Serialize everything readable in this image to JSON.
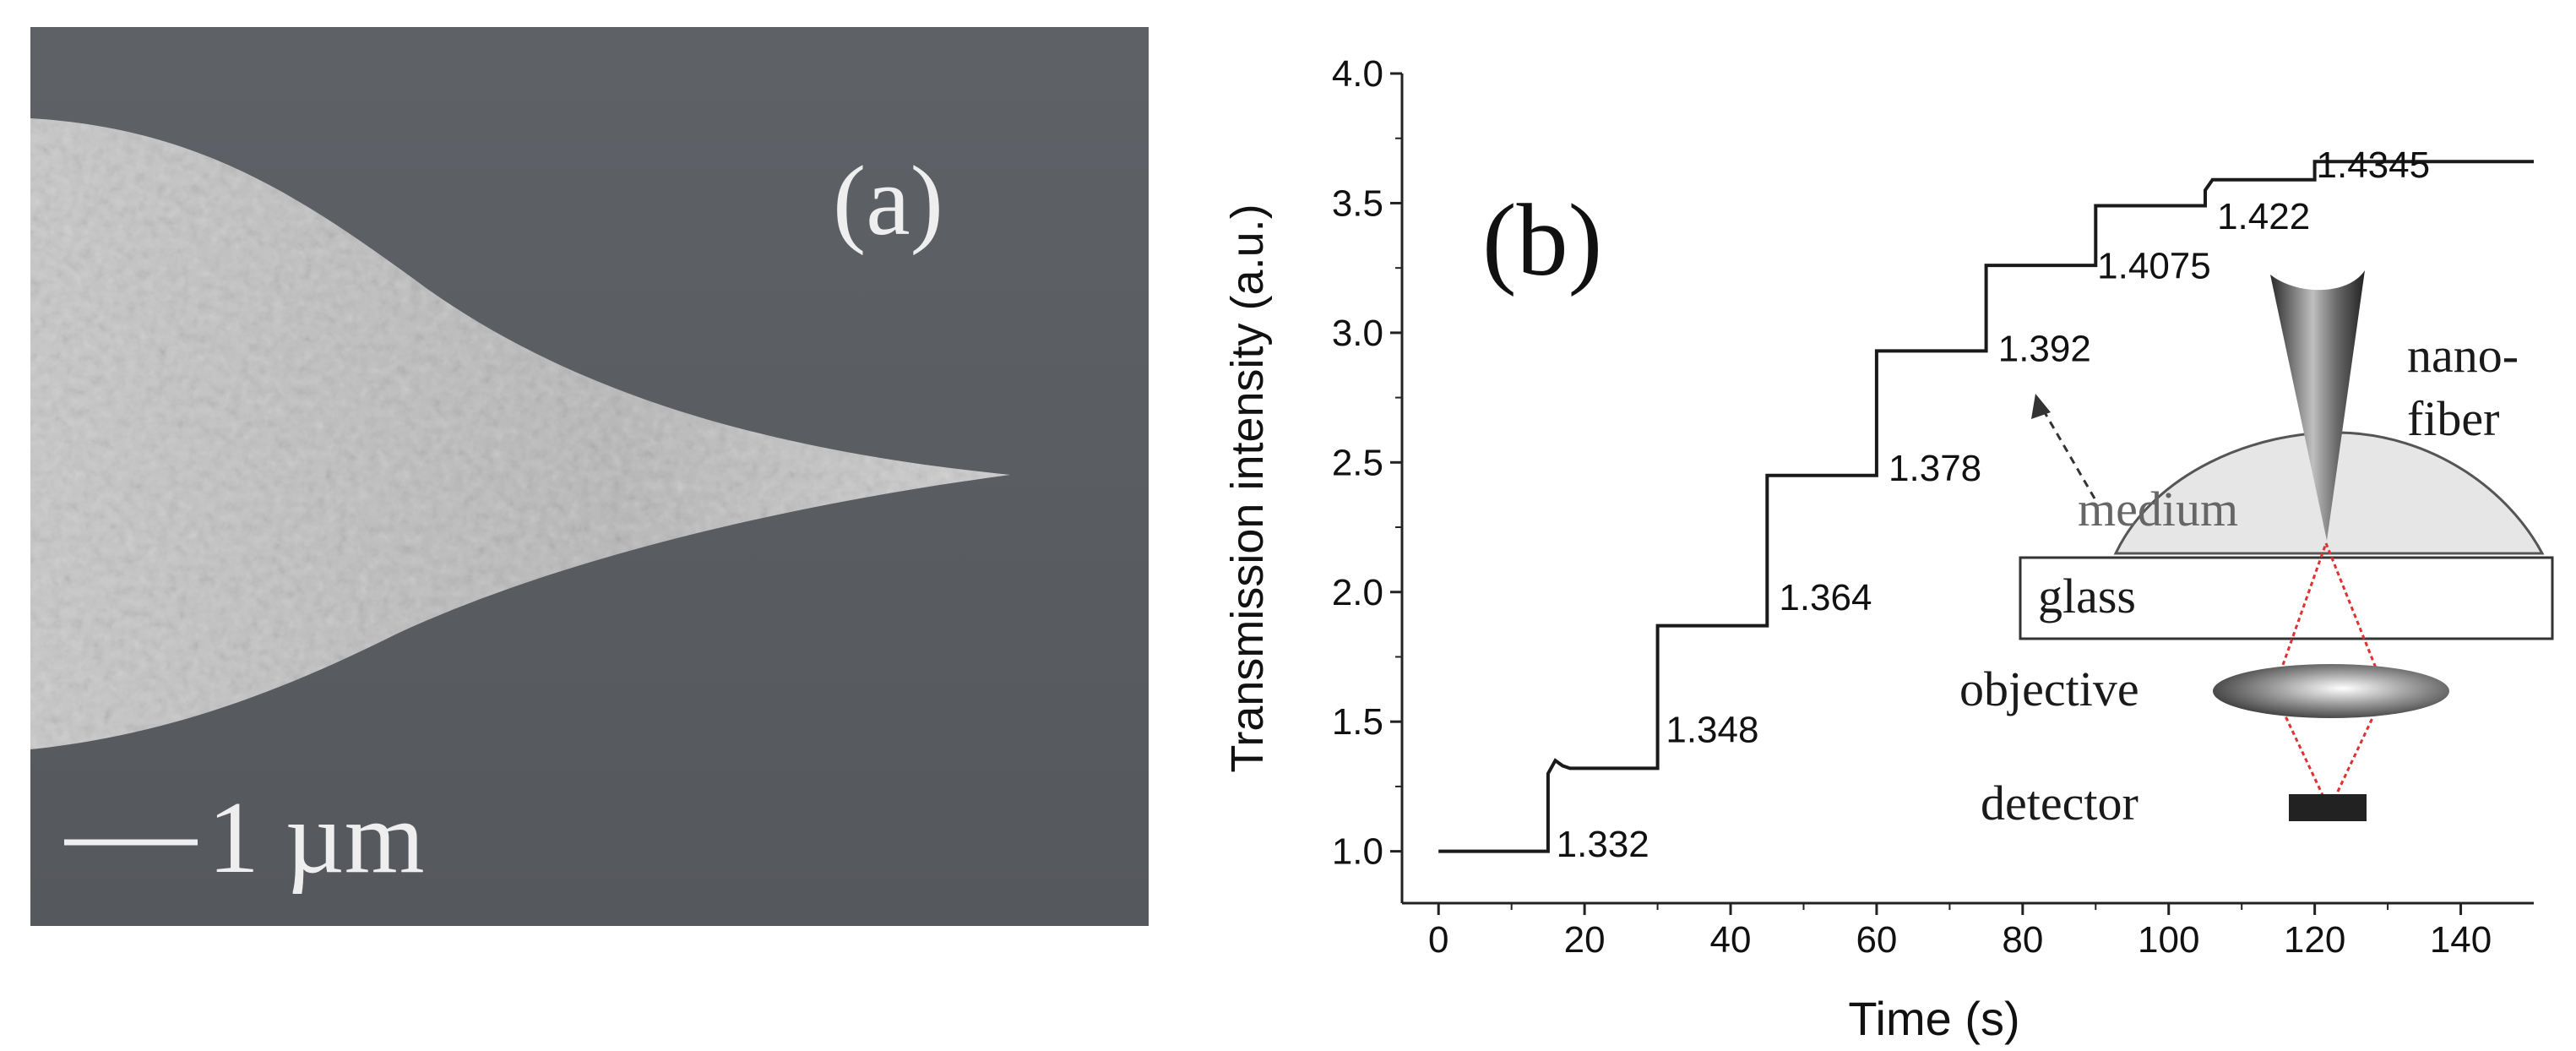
{
  "panel_a": {
    "label": "(a)",
    "scale_bar": "1 µm",
    "background": "#5b5f64",
    "tip_color": "#bcbcbc"
  },
  "panel_b": {
    "label": "(b)",
    "inset": {
      "fiber_label_1": "nano-",
      "fiber_label_2": "fiber",
      "medium_label": "medium",
      "glass_label": "glass",
      "objective_label": "objective",
      "detector_label": "detector",
      "beam_color": "#e03030"
    }
  },
  "chart_data": {
    "type": "line",
    "xlabel": "Time (s)",
    "ylabel": "Transmission intensity (a.u.)",
    "xlim": [
      -5,
      150
    ],
    "ylim": [
      0.8,
      4.0
    ],
    "xticks": [
      "0",
      "20",
      "40",
      "60",
      "80",
      "100",
      "120",
      "140"
    ],
    "yticks": [
      "1.0",
      "1.5",
      "2.0",
      "2.5",
      "3.0",
      "3.5",
      "4.0"
    ],
    "series": [
      {
        "x": [
          0,
          15,
          15,
          16,
          17,
          18,
          30,
          30,
          45,
          45,
          60,
          60,
          75,
          75,
          90,
          90,
          105,
          105,
          106,
          120,
          120,
          150
        ],
        "y": [
          1.0,
          1.0,
          1.3,
          1.35,
          1.33,
          1.32,
          1.32,
          1.87,
          1.87,
          2.45,
          2.45,
          2.93,
          2.93,
          3.26,
          3.26,
          3.49,
          3.49,
          3.55,
          3.59,
          3.59,
          3.66,
          3.66
        ]
      }
    ],
    "annotations": [
      {
        "text": "1.332",
        "x": 22.5,
        "y": 0.98
      },
      {
        "text": "1.348",
        "x": 37.5,
        "y": 1.42
      },
      {
        "text": "1.364",
        "x": 53,
        "y": 1.93
      },
      {
        "text": "1.378",
        "x": 68,
        "y": 2.43
      },
      {
        "text": "1.392",
        "x": 83,
        "y": 2.89
      },
      {
        "text": "1.4075",
        "x": 98,
        "y": 3.21
      },
      {
        "text": "1.422",
        "x": 113,
        "y": 3.4
      },
      {
        "text": "1.4345",
        "x": 128,
        "y": 3.6
      }
    ],
    "grid": false,
    "line_color": "#1a1a1a"
  }
}
